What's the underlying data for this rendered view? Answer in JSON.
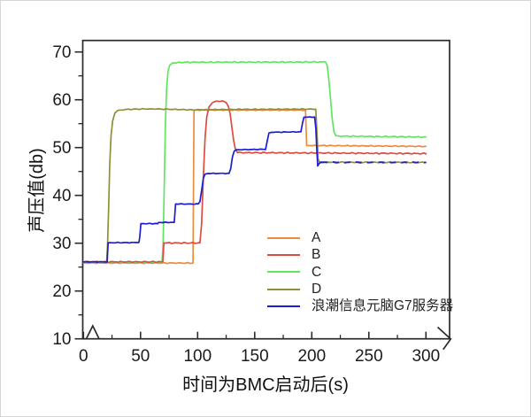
{
  "chart_data": {
    "type": "line",
    "title": "",
    "xlabel": "时间为BMC启动后(s)",
    "ylabel": "声压值(db)",
    "xlim": [
      0,
      321
    ],
    "ylim": [
      10,
      72.4
    ],
    "x_ticks": [
      0,
      50,
      100,
      150,
      200,
      250,
      300
    ],
    "x_minor_ticks": [
      25,
      75,
      125,
      175,
      225,
      275
    ],
    "y_ticks": [
      10,
      20,
      30,
      40,
      50,
      60,
      70
    ],
    "y_minor_ticks": [
      15,
      25,
      35,
      45,
      55,
      65
    ],
    "grid": false,
    "legend_position": "inside-lower-right",
    "axis_break_on_x_near_origin": true,
    "x_axis_end_arrow": true,
    "axis_color": "#2a2a2a",
    "series": [
      {
        "name": "A",
        "color": "#ED8B3D",
        "noise_amp": 0.13,
        "seed": 1.3,
        "keypoints": [
          [
            0,
            25.85
          ],
          [
            96,
            25.85
          ],
          [
            96.8,
            57.85
          ],
          [
            194.5,
            57.85
          ],
          [
            195.5,
            50.45
          ],
          [
            300,
            50.25
          ]
        ]
      },
      {
        "name": "C",
        "color": "#5FE660",
        "noise_amp": 0.15,
        "seed": 2.1,
        "keypoints": [
          [
            0,
            26.0
          ],
          [
            68.8,
            26.0
          ],
          [
            69.8,
            30
          ],
          [
            70.8,
            42
          ],
          [
            71.8,
            55
          ],
          [
            72.8,
            62
          ],
          [
            74,
            65.9
          ],
          [
            75.5,
            67.2
          ],
          [
            78,
            67.7
          ],
          [
            88,
            67.85
          ],
          [
            212,
            67.9
          ],
          [
            213.5,
            67.2
          ],
          [
            215,
            64
          ],
          [
            216.5,
            60
          ],
          [
            218,
            55.8
          ],
          [
            219.5,
            53.2
          ],
          [
            221,
            52.5
          ],
          [
            224,
            52.4
          ],
          [
            300,
            52.2
          ]
        ]
      },
      {
        "name": "B",
        "color": "#DC4C40",
        "noise_amp": 0.16,
        "seed": 3.7,
        "keypoints": [
          [
            0,
            26.1
          ],
          [
            69.5,
            26.1
          ],
          [
            70.5,
            30.05
          ],
          [
            102,
            30.05
          ],
          [
            103.5,
            34
          ],
          [
            105,
            44
          ],
          [
            106.5,
            52
          ],
          [
            108,
            56.4
          ],
          [
            110,
            58.5
          ],
          [
            113,
            59.4
          ],
          [
            116,
            59.7
          ],
          [
            122,
            59.75
          ],
          [
            125,
            59.4
          ],
          [
            127,
            58.6
          ],
          [
            128.5,
            57
          ],
          [
            130,
            54.3
          ],
          [
            131.5,
            51.6
          ],
          [
            133,
            49.7
          ],
          [
            135,
            48.95
          ],
          [
            300,
            48.75
          ]
        ]
      },
      {
        "name": "D",
        "color": "#8F8F35",
        "noise_amp": 0.11,
        "seed": 4.9,
        "keypoints": [
          [
            0,
            26.0
          ],
          [
            20.3,
            26.0
          ],
          [
            21.1,
            29.5
          ],
          [
            22,
            37
          ],
          [
            23,
            46.5
          ],
          [
            24.2,
            52.5
          ],
          [
            25.6,
            55.6
          ],
          [
            27.5,
            57.2
          ],
          [
            30,
            57.75
          ],
          [
            38,
            58.0
          ],
          [
            60,
            58.1
          ],
          [
            95,
            57.9
          ],
          [
            140,
            58.0
          ],
          [
            203.5,
            58.05
          ],
          [
            204.6,
            53
          ],
          [
            205.6,
            47.5
          ],
          [
            207,
            46.95
          ],
          [
            300,
            46.9
          ]
        ]
      },
      {
        "name": "浪潮信息元脑G7服务器",
        "color": "#1C1CD2",
        "noise_amp": 0.09,
        "seed": 6.2,
        "keypoints": [
          [
            0,
            26.1
          ],
          [
            20.8,
            26.1
          ],
          [
            21.6,
            30.1
          ],
          [
            48.5,
            30.15
          ],
          [
            49.3,
            31.2
          ],
          [
            50.3,
            34.1
          ],
          [
            65,
            34.1
          ],
          [
            66,
            34.35
          ],
          [
            79.5,
            34.35
          ],
          [
            80.7,
            38.2
          ],
          [
            100.5,
            38.2
          ],
          [
            102,
            38.7
          ],
          [
            103.5,
            41
          ],
          [
            105,
            43.6
          ],
          [
            106.5,
            44.45
          ],
          [
            109,
            44.6
          ],
          [
            127.5,
            44.6
          ],
          [
            129,
            45.6
          ],
          [
            130.5,
            48
          ],
          [
            132,
            49.25
          ],
          [
            134,
            49.55
          ],
          [
            159.5,
            49.65
          ],
          [
            161,
            51.4
          ],
          [
            162.5,
            53.05
          ],
          [
            165,
            53.2
          ],
          [
            190.5,
            53.3
          ],
          [
            192,
            55.3
          ],
          [
            193.2,
            56.35
          ],
          [
            202.5,
            56.4
          ],
          [
            203.6,
            54
          ],
          [
            204.4,
            49.5
          ],
          [
            205.2,
            46.15
          ],
          [
            206.5,
            46.7
          ],
          [
            208.5,
            47.0
          ]
        ],
        "dash_tail": {
          "from_x": 208.5,
          "to_x": 300,
          "y": 46.9,
          "dasharray": "7 6"
        }
      }
    ]
  },
  "legend": {
    "items": [
      {
        "label": "A",
        "color": "#ED8B3D"
      },
      {
        "label": "B",
        "color": "#DC4C40"
      },
      {
        "label": "C",
        "color": "#5FE660"
      },
      {
        "label": "D",
        "color": "#8F8F35"
      },
      {
        "label": "浪潮信息元脑G7服务器",
        "color": "#1C1CD2"
      }
    ]
  }
}
